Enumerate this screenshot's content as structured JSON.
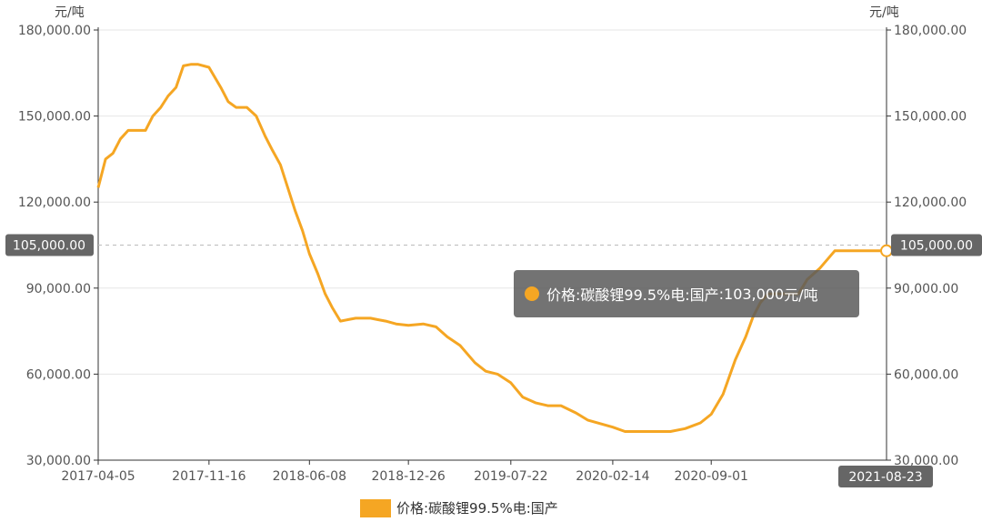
{
  "chart_data": {
    "type": "line",
    "y_unit": "元/吨",
    "ylim": [
      30000,
      180000
    ],
    "y_ticks": [
      "30,000.00",
      "60,000.00",
      "90,000.00",
      "120,000.00",
      "150,000.00",
      "180,000.00"
    ],
    "y_tick_values": [
      30000,
      60000,
      90000,
      120000,
      150000,
      180000
    ],
    "x_range": [
      "2017-04-05",
      "2021-08-23"
    ],
    "x_ticks": [
      "2017-04-05",
      "2017-11-16",
      "2018-06-08",
      "2018-12-26",
      "2019-07-22",
      "2020-02-14",
      "2020-09-01"
    ],
    "x_pointer_label": "2021-08-23",
    "y_pointer_value": 105000,
    "y_pointer_label": "105,000.00",
    "grid": true,
    "legend_position": "bottom-center",
    "color": "#f5a623",
    "series": [
      {
        "name": "价格:碳酸锂99.5%电:国产",
        "x": [
          "2017-04-05",
          "2017-04-20",
          "2017-05-05",
          "2017-05-20",
          "2017-06-05",
          "2017-06-25",
          "2017-07-10",
          "2017-07-25",
          "2017-08-10",
          "2017-08-25",
          "2017-09-10",
          "2017-09-25",
          "2017-10-10",
          "2017-10-25",
          "2017-11-16",
          "2017-12-10",
          "2017-12-25",
          "2018-01-10",
          "2018-02-01",
          "2018-02-20",
          "2018-03-10",
          "2018-03-25",
          "2018-04-10",
          "2018-04-25",
          "2018-05-10",
          "2018-05-25",
          "2018-06-08",
          "2018-06-25",
          "2018-07-10",
          "2018-07-25",
          "2018-08-10",
          "2018-08-25",
          "2018-09-10",
          "2018-09-25",
          "2018-10-10",
          "2018-10-25",
          "2018-11-10",
          "2018-12-01",
          "2018-12-26",
          "2019-01-25",
          "2019-02-20",
          "2019-03-15",
          "2019-04-10",
          "2019-05-10",
          "2019-06-01",
          "2019-06-25",
          "2019-07-22",
          "2019-08-15",
          "2019-09-10",
          "2019-10-05",
          "2019-11-01",
          "2019-12-01",
          "2019-12-25",
          "2020-02-14",
          "2020-03-10",
          "2020-04-10",
          "2020-05-10",
          "2020-06-10",
          "2020-07-10",
          "2020-08-10",
          "2020-09-01",
          "2020-09-25",
          "2020-10-20",
          "2020-11-10",
          "2020-11-25",
          "2020-12-10",
          "2020-12-25",
          "2021-01-10",
          "2021-01-25",
          "2021-02-10",
          "2021-02-25",
          "2021-03-15",
          "2021-04-10",
          "2021-05-10",
          "2021-06-10",
          "2021-07-10",
          "2021-07-25",
          "2021-08-10",
          "2021-08-23"
        ],
        "values": [
          125000,
          135000,
          137000,
          142000,
          145000,
          145000,
          145000,
          150000,
          153000,
          157000,
          160000,
          167500,
          168000,
          168000,
          167000,
          160000,
          155000,
          153000,
          153000,
          150000,
          143000,
          138000,
          133000,
          125000,
          117000,
          110000,
          102000,
          95000,
          88000,
          83000,
          78500,
          79000,
          79500,
          79500,
          79500,
          79000,
          78500,
          77500,
          77000,
          77500,
          76500,
          73000,
          70000,
          64000,
          61000,
          60000,
          57000,
          52000,
          50000,
          49000,
          49000,
          46500,
          44000,
          41500,
          40000,
          40000,
          40000,
          40000,
          41000,
          43000,
          46000,
          53000,
          65000,
          73000,
          80000,
          85000,
          88000,
          88000,
          88000,
          88000,
          88000,
          93000,
          97000,
          103000,
          103000,
          103000,
          103000,
          103000,
          103000
        ]
      }
    ]
  },
  "tooltip": {
    "series_name": "价格:碳酸锂99.5%电:国产",
    "value": "103,000",
    "unit": "元/吨"
  }
}
